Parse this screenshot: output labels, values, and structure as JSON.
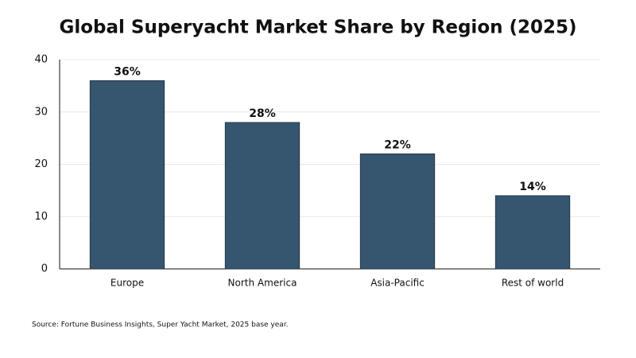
{
  "chart_data": {
    "type": "bar",
    "title": "Global Superyacht Market Share by Region (2025)",
    "categories": [
      "Europe",
      "North America",
      "Asia-Pacific",
      "Rest of world"
    ],
    "values": [
      36,
      28,
      22,
      14
    ],
    "value_labels": [
      "36%",
      "28%",
      "22%",
      "14%"
    ],
    "color": "#36556e",
    "ylim": [
      0,
      40
    ],
    "yticks": [
      0,
      10,
      20,
      30,
      40
    ],
    "grid": true,
    "note": "Source: Fortune Business Insights, Super Yacht Market, 2025 base year."
  }
}
